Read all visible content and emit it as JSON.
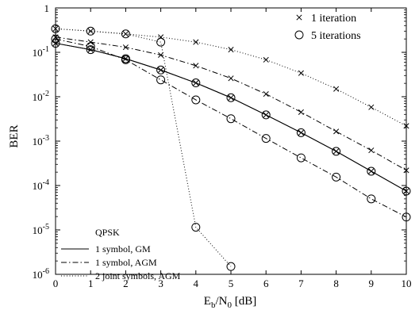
{
  "chart_data": {
    "type": "line",
    "xlabel": "E_b/N_0 [dB]",
    "xlabel_parts": {
      "main": "E",
      "sub1": "b",
      "slash": "/N",
      "sub2": "0",
      "tail": " [dB]"
    },
    "ylabel": "BER",
    "xlim": [
      0,
      10
    ],
    "ylim": [
      1e-06,
      1
    ],
    "yscale": "log",
    "x_ticks": [
      "0",
      "1",
      "2",
      "3",
      "4",
      "5",
      "6",
      "7",
      "8",
      "9",
      "10"
    ],
    "y_ticks": [
      {
        "base": "1",
        "exp": ""
      },
      {
        "base": "10",
        "exp": "-1"
      },
      {
        "base": "10",
        "exp": "-2"
      },
      {
        "base": "10",
        "exp": "-3"
      },
      {
        "base": "10",
        "exp": "-4"
      },
      {
        "base": "10",
        "exp": "-5"
      },
      {
        "base": "10",
        "exp": "-6"
      }
    ],
    "grid": false,
    "marker_legend": {
      "position": "top-right",
      "items": [
        {
          "marker": "x",
          "label": "1 iteration"
        },
        {
          "marker": "circle",
          "label": "5 iterations"
        }
      ]
    },
    "line_legend": {
      "position": "bottom-left",
      "title": "QPSK",
      "items": [
        {
          "style": "solid",
          "label": "1 symbol, GM"
        },
        {
          "style": "dashdot",
          "label": "1 symbol, AGM"
        },
        {
          "style": "dotted",
          "label": "2 joint symbols, AGM"
        }
      ]
    },
    "series": [
      {
        "label": "1 symbol, GM",
        "style": "solid",
        "marker": "x",
        "x": [
          0,
          1,
          2,
          3,
          4,
          5,
          6,
          7,
          8,
          9,
          10
        ],
        "y": [
          0.16,
          0.115,
          0.072,
          0.04,
          0.0205,
          0.0095,
          0.0039,
          0.00155,
          0.00059,
          0.00021,
          7.5e-05
        ]
      },
      {
        "label": "1 symbol, GM",
        "style": "solid",
        "marker": "circle",
        "x": [
          0,
          1,
          2,
          3,
          4,
          5,
          6,
          7,
          8,
          9,
          10
        ],
        "y": [
          0.16,
          0.115,
          0.072,
          0.04,
          0.0205,
          0.0095,
          0.0039,
          0.00155,
          0.00059,
          0.00021,
          7.5e-05
        ]
      },
      {
        "label": "1 symbol, AGM",
        "style": "dashdot",
        "marker": "x",
        "x": [
          0,
          1,
          2,
          3,
          4,
          5,
          6,
          7,
          8,
          9,
          10
        ],
        "y": [
          0.22,
          0.17,
          0.13,
          0.087,
          0.05,
          0.026,
          0.0115,
          0.0045,
          0.00165,
          0.00062,
          0.00022
        ]
      },
      {
        "label": "1 symbol, AGM",
        "style": "dashdot",
        "marker": "circle",
        "x": [
          0,
          1,
          2,
          3,
          4,
          5,
          6,
          7,
          8,
          9,
          10
        ],
        "y": [
          0.2,
          0.135,
          0.068,
          0.024,
          0.0085,
          0.0032,
          0.00115,
          0.00042,
          0.000155,
          5e-05,
          1.95e-05
        ]
      },
      {
        "label": "2 joint symbols, AGM",
        "style": "dotted",
        "marker": "x",
        "x": [
          0,
          1,
          2,
          3,
          4,
          5,
          6,
          7,
          8,
          9,
          10
        ],
        "y": [
          0.34,
          0.3,
          0.26,
          0.22,
          0.17,
          0.115,
          0.068,
          0.034,
          0.015,
          0.0058,
          0.0022
        ]
      },
      {
        "label": "2 joint symbols, AGM",
        "style": "dotted",
        "marker": "circle",
        "x": [
          0,
          1,
          2,
          3,
          4,
          5
        ],
        "y": [
          0.34,
          0.3,
          0.26,
          0.17,
          1.15e-05,
          1.5e-06
        ]
      }
    ]
  }
}
